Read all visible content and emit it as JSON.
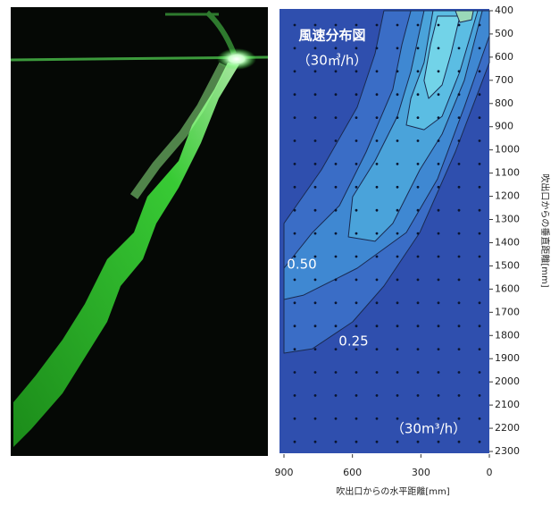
{
  "chart_data": {
    "type": "contour",
    "title": "風速分布図",
    "subtitle": "（30㎥/h）",
    "annotation": "（30m³/h）",
    "x_label": "吹出口からの水平距離[mm]",
    "y_label": "吹出口からの垂直距離[mm]",
    "contour_labels": [
      "0.50",
      "0.25"
    ],
    "xlim": [
      900,
      0
    ],
    "ylim": [
      2300,
      400
    ],
    "xticks": [
      900,
      600,
      300,
      0
    ],
    "yticks": [
      400,
      500,
      600,
      700,
      800,
      900,
      1000,
      1100,
      1200,
      1300,
      1400,
      1500,
      1600,
      1700,
      1800,
      1900,
      2000,
      2100,
      2200,
      2300
    ],
    "background_color": "#2f4fae",
    "regions": [
      {
        "color": "#3a6dc6",
        "x": [
          462,
          0,
          0,
          149,
          305,
          462,
          599,
          775,
          900,
          900,
          736,
          579,
          501
        ],
        "y": [
          400,
          400,
          624,
          1009,
          1356,
          1587,
          1741,
          1857,
          1876,
          1317,
          1086,
          816,
          585
        ]
      },
      {
        "color": "#3f88d2",
        "x": [
          344,
          0,
          0,
          110,
          227,
          364,
          579,
          814,
          900,
          900,
          775,
          657,
          540,
          423,
          383
        ],
        "y": [
          400,
          400,
          508,
          816,
          1125,
          1356,
          1510,
          1626,
          1645,
          1510,
          1356,
          1240,
          1009,
          739,
          546
        ]
      },
      {
        "color": "#4aa3da",
        "x": [
          286,
          31,
          110,
          207,
          305,
          423,
          501,
          618,
          599,
          501,
          403,
          344
        ],
        "y": [
          400,
          400,
          701,
          932,
          1086,
          1317,
          1394,
          1375,
          1202,
          1047,
          855,
          662
        ]
      },
      {
        "color": "#5bbde3",
        "x": [
          247,
          51,
          129,
          207,
          286,
          364,
          344,
          286
        ],
        "y": [
          400,
          400,
          662,
          855,
          913,
          893,
          778,
          624
        ]
      },
      {
        "color": "#72d3e8",
        "x": [
          227,
          129,
          168,
          207,
          266,
          286,
          258
        ],
        "y": [
          423,
          423,
          585,
          720,
          778,
          701,
          546
        ]
      },
      {
        "color": "#9ad8b8",
        "x": [
          149,
          70,
          78,
          129
        ],
        "y": [
          400,
          400,
          439,
          450
        ]
      }
    ]
  }
}
